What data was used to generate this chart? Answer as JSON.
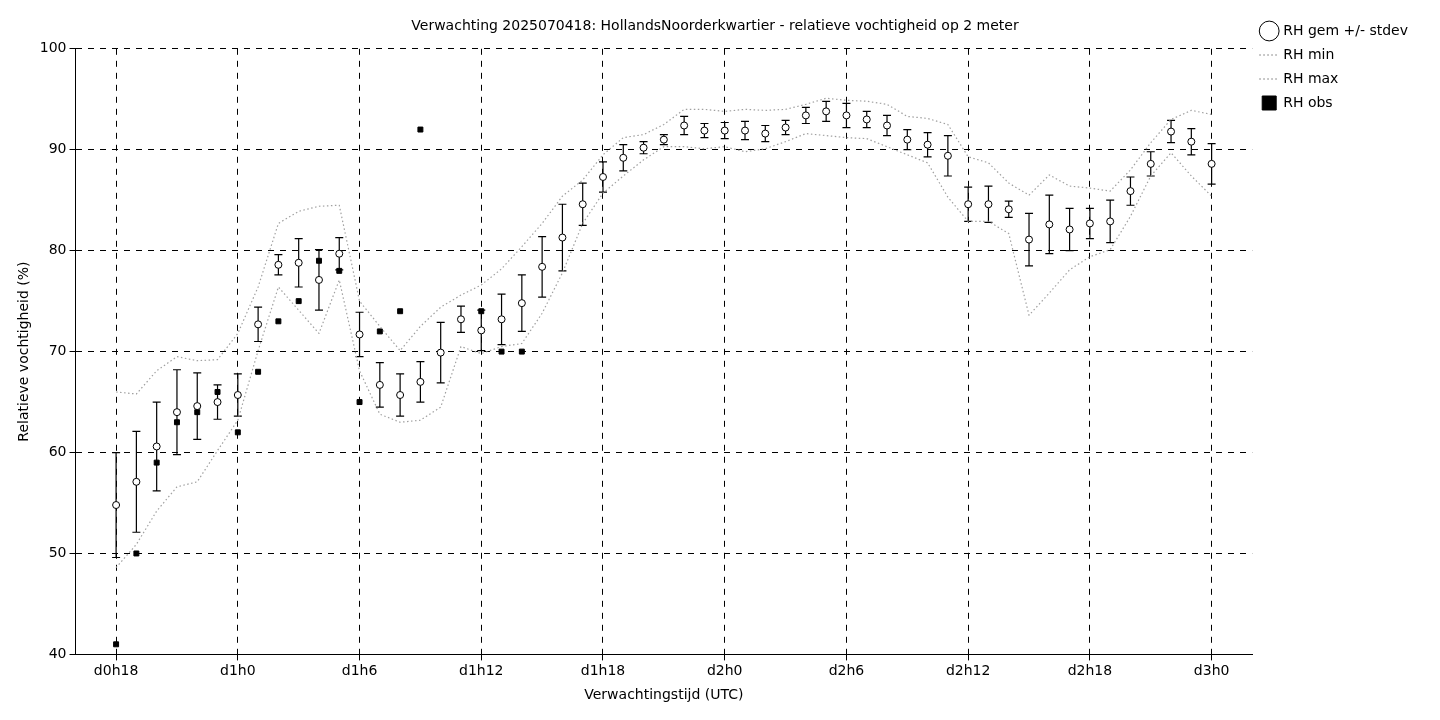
{
  "chart_data": {
    "type": "scatter",
    "title": "Verwachting 2025070418: HollandsNoorderkwartier - relatieve vochtigheid op 2 meter",
    "xlabel": "Verwachtingstijd (UTC)",
    "ylabel": "Relatieve vochtigheid (%)",
    "categories": [
      "d0h18",
      null,
      null,
      null,
      null,
      null,
      "d1h0",
      null,
      null,
      null,
      null,
      null,
      "d1h6",
      null,
      null,
      null,
      null,
      null,
      "d1h12",
      null,
      null,
      null,
      null,
      null,
      "d1h18",
      null,
      null,
      null,
      null,
      null,
      "d2h0",
      null,
      null,
      null,
      null,
      null,
      "d2h6",
      null,
      null,
      null,
      null,
      null,
      "d2h12",
      null,
      null,
      null,
      null,
      null,
      "d2h18",
      null,
      null,
      null,
      null,
      null,
      "d3h0"
    ],
    "ylim": [
      40,
      100
    ],
    "yticks": [
      40,
      50,
      60,
      70,
      80,
      90,
      100
    ],
    "grid": true,
    "legend": "top right",
    "series": [
      {
        "name": "RH gem +/- stdev",
        "type": "scatter",
        "marker": "circle",
        "color": "#000000",
        "values": [
          54.8,
          57.1,
          60.6,
          64.0,
          64.6,
          65.0,
          65.7,
          72.7,
          78.6,
          78.8,
          77.1,
          79.7,
          71.7,
          66.7,
          65.7,
          67.0,
          69.9,
          73.2,
          72.1,
          73.2,
          74.8,
          78.4,
          81.3,
          84.6,
          87.3,
          89.2,
          90.2,
          91.0,
          92.4,
          91.9,
          91.9,
          91.9,
          91.6,
          92.2,
          93.4,
          93.8,
          93.4,
          93.0,
          92.4,
          91.0,
          90.5,
          89.4,
          84.6,
          84.6,
          84.1,
          81.1,
          82.6,
          82.1,
          82.7,
          82.9,
          85.9,
          88.6,
          91.8,
          90.8,
          88.6
        ],
        "errors": [
          5.2,
          5.0,
          4.4,
          4.2,
          3.3,
          1.7,
          2.1,
          1.7,
          1.0,
          2.4,
          3.0,
          1.6,
          2.2,
          2.2,
          2.1,
          2.0,
          3.0,
          1.3,
          2.0,
          2.5,
          2.8,
          3.0,
          3.3,
          2.1,
          1.5,
          1.3,
          0.6,
          0.5,
          0.9,
          0.7,
          0.8,
          0.9,
          0.8,
          0.7,
          0.8,
          1.0,
          1.2,
          0.8,
          1.0,
          1.0,
          1.2,
          2.0,
          1.7,
          1.8,
          0.8,
          2.6,
          2.9,
          2.1,
          1.5,
          2.1,
          1.4,
          1.2,
          1.1,
          1.3,
          2.0
        ]
      },
      {
        "name": "RH min",
        "type": "line",
        "marker": "none",
        "line_style": "dotted",
        "color": "#a0a0a0",
        "values": [
          48.6,
          50.9,
          54.2,
          56.6,
          57.1,
          60.2,
          63.2,
          70.1,
          76.4,
          74.1,
          71.8,
          77.1,
          68.1,
          63.8,
          63.0,
          63.2,
          64.5,
          70.5,
          69.8,
          70.5,
          70.8,
          73.8,
          77.8,
          82.7,
          85.7,
          87.4,
          89.0,
          90.3,
          90.3,
          90.1,
          90.3,
          89.8,
          90.1,
          90.8,
          91.6,
          91.4,
          91.2,
          91.1,
          90.3,
          89.5,
          88.7,
          85.3,
          82.9,
          82.9,
          81.7,
          73.6,
          75.8,
          78.1,
          79.4,
          80.1,
          83.4,
          87.4,
          89.7,
          87.4,
          85.4
        ]
      },
      {
        "name": "RH max",
        "type": "line",
        "marker": "none",
        "line_style": "dotted",
        "color": "#a0a0a0",
        "values": [
          66.0,
          65.8,
          68.1,
          69.5,
          69.1,
          69.2,
          71.8,
          76.4,
          82.7,
          83.9,
          84.4,
          84.5,
          75.0,
          72.5,
          70.1,
          72.5,
          74.4,
          75.6,
          76.6,
          78.2,
          80.4,
          82.7,
          85.4,
          87.0,
          89.5,
          91.2,
          91.5,
          92.5,
          94.0,
          94.0,
          93.8,
          94.0,
          93.9,
          94.0,
          94.5,
          95.1,
          94.9,
          94.8,
          94.5,
          93.3,
          93.1,
          92.5,
          89.3,
          88.7,
          86.7,
          85.5,
          87.5,
          86.4,
          86.2,
          85.9,
          88.0,
          90.7,
          93.0,
          93.9,
          93.5
        ]
      },
      {
        "name": "RH obs",
        "type": "scatter",
        "marker": "square",
        "color": "#000000",
        "values": [
          41,
          50,
          59,
          63,
          64,
          66,
          62,
          68,
          73,
          75,
          79,
          78,
          65,
          72,
          74,
          92,
          null,
          null,
          74,
          70,
          70,
          null,
          null,
          null,
          null,
          null,
          null,
          null,
          null,
          null,
          null,
          null,
          null,
          null,
          null,
          null,
          null,
          null,
          null,
          null,
          null,
          null,
          null,
          null,
          null,
          null,
          null,
          null,
          null,
          null,
          null,
          null,
          null,
          null,
          null
        ]
      }
    ]
  }
}
